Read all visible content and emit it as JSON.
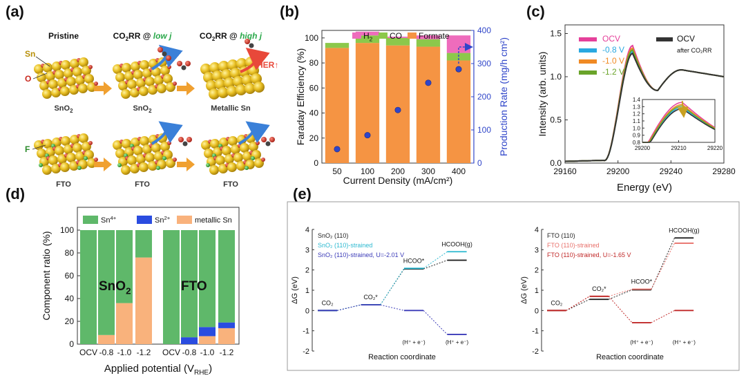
{
  "panels": {
    "a": "(a)",
    "b": "(b)",
    "c": "(c)",
    "d": "(d)",
    "e": "(e)"
  },
  "panel_a": {
    "col_pristine": "Pristine",
    "col_low_prefix": "CO",
    "col_low_sub": "2",
    "col_low_mid": "RR @ ",
    "col_low_j": "low j",
    "col_high_prefix": "CO",
    "col_high_sub": "2",
    "col_high_mid": "RR @ ",
    "col_high_j": "high j",
    "label_sn": "Sn",
    "label_o": "O",
    "label_f": "F",
    "label_her": "HER",
    "label_her_arrow": "↑",
    "row1_captions": [
      "SnO",
      "SnO",
      "Metallic Sn"
    ],
    "row1_caption_subs": [
      "2",
      "2",
      ""
    ],
    "row2_captions": [
      "FTO",
      "FTO",
      "FTO"
    ],
    "colors": {
      "tin": "#e9c024",
      "oxygen": "#c8281e",
      "fluorine": "#3aa83a",
      "arrow": "#f0a030",
      "curve": "#3a80d8",
      "her": "#e8483a",
      "low_j": "#2aa84a",
      "high_j": "#2aa84a"
    }
  },
  "chart_data": [
    {
      "id": "b",
      "type": "bar",
      "title": "",
      "categories": [
        "50",
        "100",
        "200",
        "300",
        "400"
      ],
      "xlabel": "Current Density (mA/cm²)",
      "ylabel": "Faraday Efficiency (%)",
      "y2label": "Production Rate (mg/h cm²)",
      "ylim": [
        0,
        120
      ],
      "y2lim": [
        0,
        400
      ],
      "yticks": [
        0,
        20,
        40,
        60,
        80,
        100
      ],
      "y2ticks": [
        0,
        100,
        200,
        300,
        400
      ],
      "legend": [
        "H2",
        "CO",
        "Formate"
      ],
      "legend_display": [
        {
          "text": "H",
          "sub": "2"
        },
        {
          "text": "CO",
          "sub": ""
        },
        {
          "text": "Formate",
          "sub": ""
        }
      ],
      "legend_placement": "top",
      "series": [
        {
          "name": "Formate",
          "values": [
            92,
            96,
            94,
            93,
            82
          ],
          "color": "#f59443"
        },
        {
          "name": "CO",
          "values": [
            4,
            6,
            6,
            6,
            6
          ],
          "color": "#8cc84b"
        },
        {
          "name": "H2",
          "values": [
            0,
            3,
            1,
            3,
            14
          ],
          "color": "#ee6cbc"
        }
      ],
      "production_rate": {
        "values": [
          42,
          84,
          160,
          242,
          283
        ],
        "color": "#2f45c9"
      }
    },
    {
      "id": "c",
      "type": "line",
      "xlabel": "Energy (eV)",
      "ylabel": "Intensity (arb. units)",
      "xlim": [
        29160,
        29280
      ],
      "ylim": [
        0,
        1.6
      ],
      "xticks": [
        29160,
        29200,
        29240,
        29280
      ],
      "yticks": [
        0.0,
        0.5,
        1.0,
        1.5
      ],
      "legend_placement": "top",
      "series": [
        {
          "name": "OCV",
          "color": "#e5409a",
          "peak": 1.36
        },
        {
          "name": "-0.8 V",
          "color": "#2aa8e0",
          "peak": 1.29
        },
        {
          "name": "-1.0 V",
          "color": "#f08a24",
          "peak": 1.33
        },
        {
          "name": "-1.2 V",
          "color": "#6aa42a",
          "peak": 1.31
        },
        {
          "name": "OCV",
          "color": "#333333",
          "peak": 1.27
        }
      ],
      "legend_right_note": "after CO₂RR",
      "inset": {
        "xlim": [
          29200,
          29220
        ],
        "ylim": [
          0.8,
          1.4
        ],
        "xticks": [
          29200,
          29210,
          29220
        ],
        "yticks": [
          0.8,
          0.9,
          1.0,
          1.1,
          1.2,
          1.3,
          1.4
        ]
      }
    },
    {
      "id": "d",
      "type": "bar",
      "categories": [
        "OCV",
        "-0.8",
        "-1.0",
        "-1.2",
        "OCV",
        "-0.8",
        "-1.0",
        "-1.2"
      ],
      "group_labels": [
        "SnO",
        "FTO"
      ],
      "group_label_subs": [
        "2",
        ""
      ],
      "xlabel": "Applied potential (V",
      "xlabel_sub": "RHE",
      "xlabel_end": ")",
      "ylabel": "Component ratio (%)",
      "ylim": [
        0,
        120
      ],
      "yticks": [
        0,
        20,
        40,
        60,
        80,
        100
      ],
      "legend": [
        "Sn4+",
        "Sn2+",
        "metallic Sn"
      ],
      "legend_display": [
        {
          "text": "Sn",
          "sup": "4+"
        },
        {
          "text": "Sn",
          "sup": "2+"
        },
        {
          "text": "metallic Sn",
          "sup": ""
        }
      ],
      "legend_placement": "top",
      "series": [
        {
          "name": "metallic Sn",
          "values": [
            0,
            8,
            36,
            76,
            0,
            0,
            7,
            14
          ],
          "color": "#f9b27c"
        },
        {
          "name": "Sn2+",
          "values": [
            0,
            0,
            0,
            0,
            0,
            6,
            8,
            5
          ],
          "color": "#2a4ce0"
        },
        {
          "name": "Sn4+",
          "values": [
            100,
            92,
            64,
            24,
            100,
            94,
            85,
            81
          ],
          "color": "#5fb86a"
        }
      ]
    },
    {
      "id": "e1",
      "type": "line",
      "xlabel": "Reaction coordinate",
      "ylabel": "ΔG (eV)",
      "ylim": [
        -2,
        4
      ],
      "yticks": [
        -2,
        -1,
        0,
        1,
        2,
        3,
        4
      ],
      "legend": [
        "SnO₂ (110)",
        "SnO₂ (110)-strained",
        "SnO₂ (110)-strained, U=-2.01 V"
      ],
      "legend_colors": [
        "#222222",
        "#2ab8d0",
        "#3a3ab8"
      ],
      "state_labels": [
        "CO₂",
        "CO₂*",
        "HCOO*",
        "HCOOH(g)"
      ],
      "step_labels": [
        "(H⁺ + e⁻)",
        "(H⁺ + e⁻)"
      ],
      "series": [
        {
          "name": "SnO₂ (110)",
          "values": [
            0,
            0.28,
            2.05,
            2.48
          ],
          "color": "#222222"
        },
        {
          "name": "SnO₂ (110)-strained",
          "values": [
            0,
            0.28,
            2.08,
            2.9
          ],
          "color": "#2ab8d0"
        },
        {
          "name": "SnO₂ (110)-strained, U=-2.01 V",
          "values": [
            0,
            0.28,
            0.0,
            -1.18
          ],
          "color": "#3a3ab8"
        }
      ]
    },
    {
      "id": "e2",
      "type": "line",
      "xlabel": "Reaction coordinate",
      "ylabel": "ΔG (eV)",
      "ylim": [
        -2,
        4
      ],
      "yticks": [
        -2,
        -1,
        0,
        1,
        2,
        3,
        4
      ],
      "legend": [
        "FTO (110)",
        "FTO (110)-strained",
        "FTO (110)-strained, U=-1.65 V"
      ],
      "legend_colors": [
        "#222222",
        "#e8706a",
        "#c02828"
      ],
      "state_labels": [
        "CO₂",
        "CO₂*",
        "HCOO*",
        "HCOOH(g)"
      ],
      "step_labels": [
        "(H⁺ + e⁻)",
        "(H⁺ + e⁻)"
      ],
      "series": [
        {
          "name": "FTO (110)",
          "values": [
            0,
            0.55,
            1.02,
            3.58
          ],
          "color": "#222222"
        },
        {
          "name": "FTO (110)-strained",
          "values": [
            0,
            0.7,
            1.05,
            3.32
          ],
          "color": "#e8706a"
        },
        {
          "name": "FTO (110)-strained, U=-1.65 V",
          "values": [
            0,
            0.7,
            -0.6,
            0.0
          ],
          "color": "#c02828"
        }
      ]
    }
  ]
}
